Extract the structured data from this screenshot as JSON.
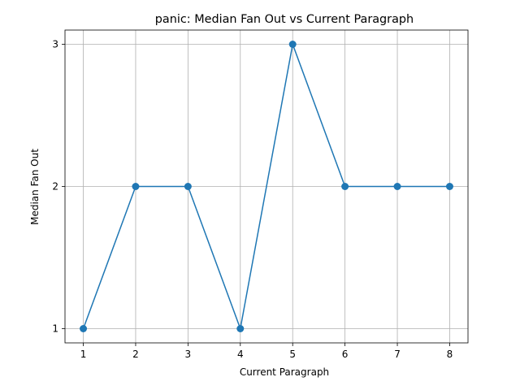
{
  "chart_data": {
    "type": "line",
    "title": "panic: Median Fan Out vs Current Paragraph",
    "xlabel": "Current Paragraph",
    "ylabel": "Median Fan Out",
    "x": [
      1,
      2,
      3,
      4,
      5,
      6,
      7,
      8
    ],
    "series": [
      {
        "values": [
          1,
          2,
          2,
          1,
          3,
          2,
          2,
          2
        ],
        "color": "#1f77b4",
        "marker": "circle"
      }
    ],
    "xticks": [
      1,
      2,
      3,
      4,
      5,
      6,
      7,
      8
    ],
    "yticks": [
      1,
      2,
      3
    ],
    "xlim": [
      0.65,
      8.35
    ],
    "ylim": [
      0.9,
      3.1
    ],
    "grid": true
  }
}
